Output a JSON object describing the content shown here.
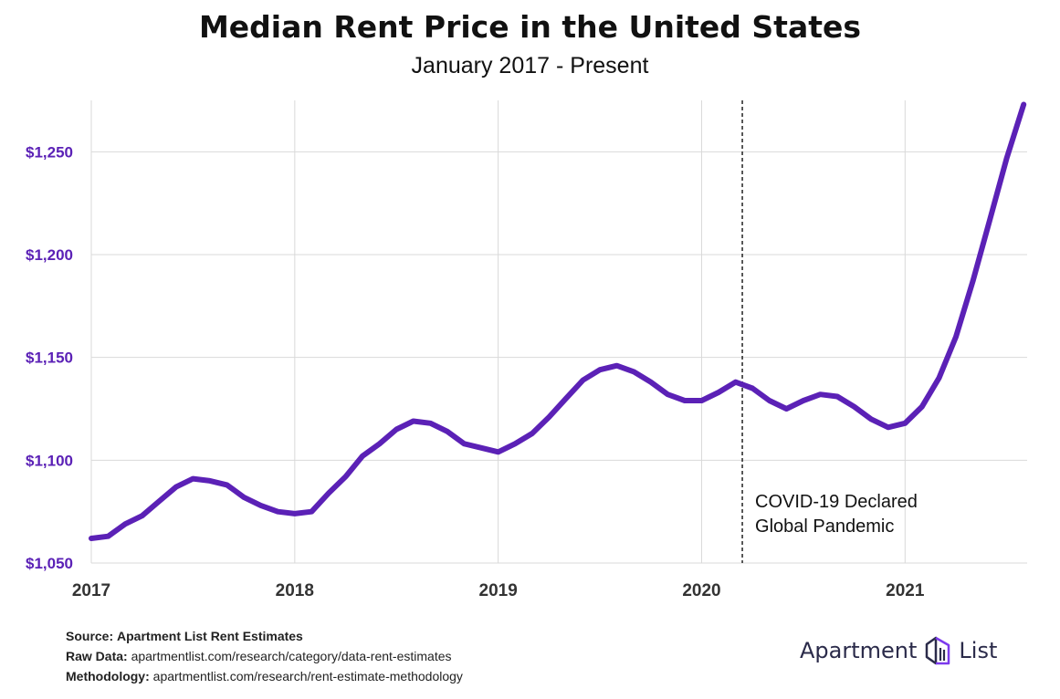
{
  "chart_data": {
    "type": "line",
    "title": "Median Rent Price in the United States",
    "subtitle": "January 2017 - Present",
    "xlabel": "",
    "ylabel": "",
    "ylim": [
      1050,
      1275
    ],
    "xlim": [
      2017,
      2021.6
    ],
    "y_ticks": [
      1050,
      1100,
      1150,
      1200,
      1250
    ],
    "y_tick_labels": [
      "$1,050",
      "$1,100",
      "$1,150",
      "$1,200",
      "$1,250"
    ],
    "x_ticks": [
      2017,
      2018,
      2019,
      2020,
      2021
    ],
    "x_tick_labels": [
      "2017",
      "2018",
      "2019",
      "2020",
      "2021"
    ],
    "grid": true,
    "series": [
      {
        "name": "",
        "color": "#5b21b6",
        "x": [
          2017.0,
          2017.083,
          2017.167,
          2017.25,
          2017.333,
          2017.417,
          2017.5,
          2017.583,
          2017.667,
          2017.75,
          2017.833,
          2017.917,
          2018.0,
          2018.083,
          2018.167,
          2018.25,
          2018.333,
          2018.417,
          2018.5,
          2018.583,
          2018.667,
          2018.75,
          2018.833,
          2018.917,
          2019.0,
          2019.083,
          2019.167,
          2019.25,
          2019.333,
          2019.417,
          2019.5,
          2019.583,
          2019.667,
          2019.75,
          2019.833,
          2019.917,
          2020.0,
          2020.083,
          2020.167,
          2020.25,
          2020.333,
          2020.417,
          2020.5,
          2020.583,
          2020.667,
          2020.75,
          2020.833,
          2020.917,
          2021.0,
          2021.083,
          2021.167,
          2021.25,
          2021.333,
          2021.417,
          2021.5,
          2021.583
        ],
        "y": [
          1062,
          1063,
          1069,
          1073,
          1080,
          1087,
          1091,
          1090,
          1088,
          1082,
          1078,
          1075,
          1074,
          1075,
          1084,
          1092,
          1102,
          1108,
          1115,
          1119,
          1118,
          1114,
          1108,
          1106,
          1104,
          1108,
          1113,
          1121,
          1130,
          1139,
          1144,
          1146,
          1143,
          1138,
          1132,
          1129,
          1129,
          1133,
          1138,
          1135,
          1129,
          1125,
          1129,
          1132,
          1131,
          1126,
          1120,
          1116,
          1118,
          1126,
          1140,
          1160,
          1187,
          1217,
          1247,
          1273
        ]
      }
    ],
    "annotations": [
      {
        "x": 2020.2,
        "text_lines": [
          "COVID-19 Declared",
          "Global Pandemic"
        ]
      }
    ]
  },
  "footer": {
    "source_label": "Source:",
    "source_value": "Apartment List Rent Estimates",
    "raw_label": "Raw Data:",
    "raw_value": "apartmentlist.com/research/category/data-rent-estimates",
    "method_label": "Methodology:",
    "method_value": "apartmentlist.com/research/rent-estimate-methodology"
  },
  "logo": {
    "left_word": "Apartment",
    "right_word": "List",
    "icon": "apartment-list-logo-icon"
  },
  "colors": {
    "accent": "#5b21b6",
    "grid": "#d9d9d9",
    "text": "#111111"
  }
}
